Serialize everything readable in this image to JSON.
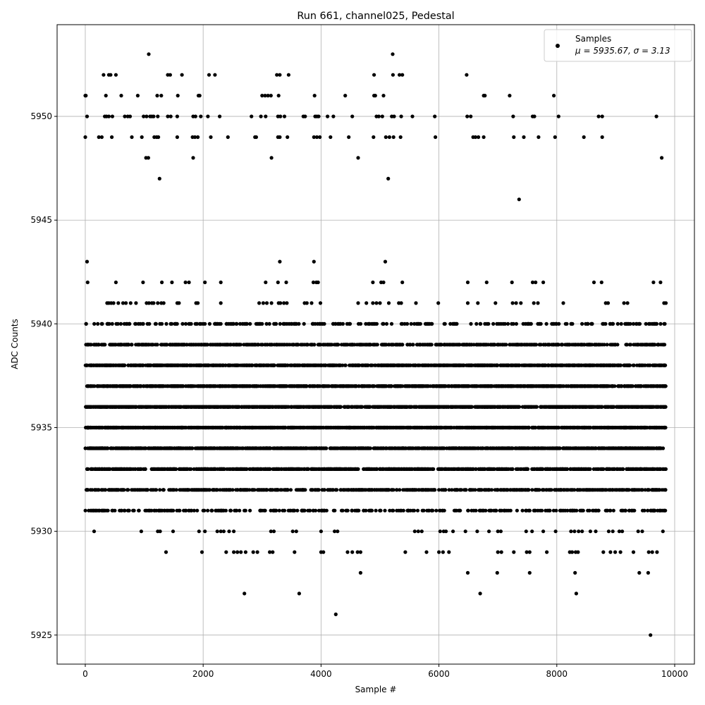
{
  "chart_data": {
    "type": "scatter",
    "title": "Run 661, channel025, Pedestal",
    "xlabel": "Sample #",
    "ylabel": "ADC Counts",
    "xlim": [
      -478,
      10335
    ],
    "ylim": [
      5923.6,
      5954.42
    ],
    "xticks": [
      0,
      2000,
      4000,
      6000,
      8000,
      10000
    ],
    "yticks": [
      5925,
      5930,
      5935,
      5940,
      5945,
      5950
    ],
    "grid": true,
    "marker_color": "#000000",
    "legend": {
      "placement": "top-right",
      "label": "Samples",
      "stats": "μ = 5935.67, σ = 3.13"
    },
    "dense_levels": [
      {
        "y": 5940,
        "x_min": 0,
        "x_max": 9850,
        "count": 260
      },
      {
        "y": 5939,
        "x_min": 0,
        "x_max": 9850,
        "count": 650
      },
      {
        "y": 5938,
        "x_min": 0,
        "x_max": 9850,
        "count": 950
      },
      {
        "y": 5937,
        "x_min": 0,
        "x_max": 9850,
        "count": 1150
      },
      {
        "y": 5936,
        "x_min": 0,
        "x_max": 9850,
        "count": 1150
      },
      {
        "y": 5935,
        "x_min": 0,
        "x_max": 9850,
        "count": 1150
      },
      {
        "y": 5934,
        "x_min": 0,
        "x_max": 9850,
        "count": 1000
      },
      {
        "y": 5933,
        "x_min": 0,
        "x_max": 9850,
        "count": 800
      },
      {
        "y": 5932,
        "x_min": 0,
        "x_max": 9850,
        "count": 600
      },
      {
        "y": 5931,
        "x_min": 0,
        "x_max": 9850,
        "count": 330
      }
    ],
    "sparse_points": {
      "5953": [
        1077,
        5215
      ],
      "5952": [
        310,
        400,
        430,
        520,
        1400,
        1440,
        1640,
        2100,
        2200,
        3250,
        3300,
        3450,
        4900,
        5220,
        5330,
        5380,
        6470
      ],
      "5951": [
        0,
        10,
        350,
        610,
        890,
        1220,
        1290,
        1570,
        1920,
        1940,
        3000,
        3050,
        3100,
        3150,
        3280,
        3890,
        4410,
        4900,
        4920,
        5060,
        6760,
        6780,
        7200,
        7950
      ],
      "5950": [
        30,
        330,
        360,
        400,
        460,
        670,
        720,
        760,
        990,
        1040,
        1100,
        1130,
        1160,
        1230,
        1400,
        1450,
        1560,
        1830,
        1870,
        1960,
        2080,
        2280,
        2820,
        2980,
        3060,
        3270,
        3310,
        3380,
        3700,
        3730,
        3900,
        3930,
        3960,
        4110,
        4210,
        4530,
        4940,
        4980,
        5040,
        5200,
        5240,
        5360,
        5550,
        5930,
        6480,
        6540,
        7260,
        7590,
        7620,
        8030,
        8710,
        8770,
        9690
      ],
      "5949": [
        0,
        230,
        280,
        450,
        790,
        960,
        1170,
        1210,
        1240,
        1560,
        1820,
        1860,
        1910,
        2130,
        2420,
        2880,
        2900,
        3270,
        3300,
        3430,
        3880,
        3930,
        3980,
        4160,
        4470,
        4890,
        5100,
        5160,
        5230,
        5350,
        5940,
        6580,
        6620,
        6670,
        6760,
        7270,
        7440,
        7690,
        7970,
        8460,
        8770
      ],
      "5948": [
        1030,
        1070,
        1830,
        3160,
        4630,
        9780
      ],
      "5947": [
        1260,
        5140
      ],
      "5946": [
        7360
      ],
      "5943": [
        30,
        3300,
        3880,
        5090
      ],
      "5942": [
        40,
        520,
        980,
        1300,
        1470,
        1700,
        1760,
        2030,
        2300,
        3060,
        3270,
        3410,
        3870,
        3920,
        3950,
        4880,
        5020,
        5060,
        5380,
        6490,
        6810,
        7240,
        7590,
        7640,
        7770,
        8630,
        8760,
        9640,
        9760
      ],
      "5941": [
        370,
        400,
        440,
        480,
        560,
        640,
        690,
        770,
        860,
        1040,
        1080,
        1130,
        1160,
        1230,
        1290,
        1330,
        1560,
        1590,
        1880,
        1910,
        2300,
        2950,
        3020,
        3080,
        3160,
        3280,
        3310,
        3370,
        3420,
        3720,
        3760,
        3840,
        3990,
        4630,
        4770,
        4880,
        4940,
        5000,
        5150,
        5320,
        5360,
        5610,
        5990,
        6490,
        6660,
        6960,
        7250,
        7310,
        7390,
        7610,
        7680,
        8110,
        8830,
        8870,
        9140,
        9200,
        9820,
        9850
      ],
      "5930": [
        150,
        950,
        1230,
        1270,
        1490,
        1930,
        2030,
        2240,
        2300,
        2350,
        2440,
        2520,
        3150,
        3200,
        3520,
        3580,
        4000,
        4230,
        4280,
        5590,
        5650,
        5710,
        6020,
        6080,
        6120,
        6240,
        6450,
        6650,
        6850,
        7000,
        7050,
        7480,
        7580,
        7770,
        7980,
        8240,
        8300,
        8370,
        8430,
        8570,
        8660,
        8880,
        8950,
        9060,
        9110,
        9380,
        9450,
        9800
      ],
      "5929": [
        1370,
        1980,
        2390,
        2520,
        2580,
        2640,
        2720,
        2850,
        2920,
        3130,
        3180,
        3550,
        4000,
        4040,
        4450,
        4530,
        4620,
        4670,
        5430,
        5790,
        6000,
        6070,
        6170,
        7000,
        7060,
        7270,
        7490,
        7540,
        7830,
        8220,
        8260,
        8320,
        8360,
        8790,
        8910,
        8990,
        9080,
        9300,
        9560,
        9620,
        9700
      ],
      "5928": [
        4670,
        6490,
        6990,
        7540,
        8310,
        9400,
        9550
      ],
      "5927": [
        2700,
        3630,
        6700,
        8330
      ],
      "5926": [
        4250
      ],
      "5925": [
        9590
      ]
    }
  }
}
